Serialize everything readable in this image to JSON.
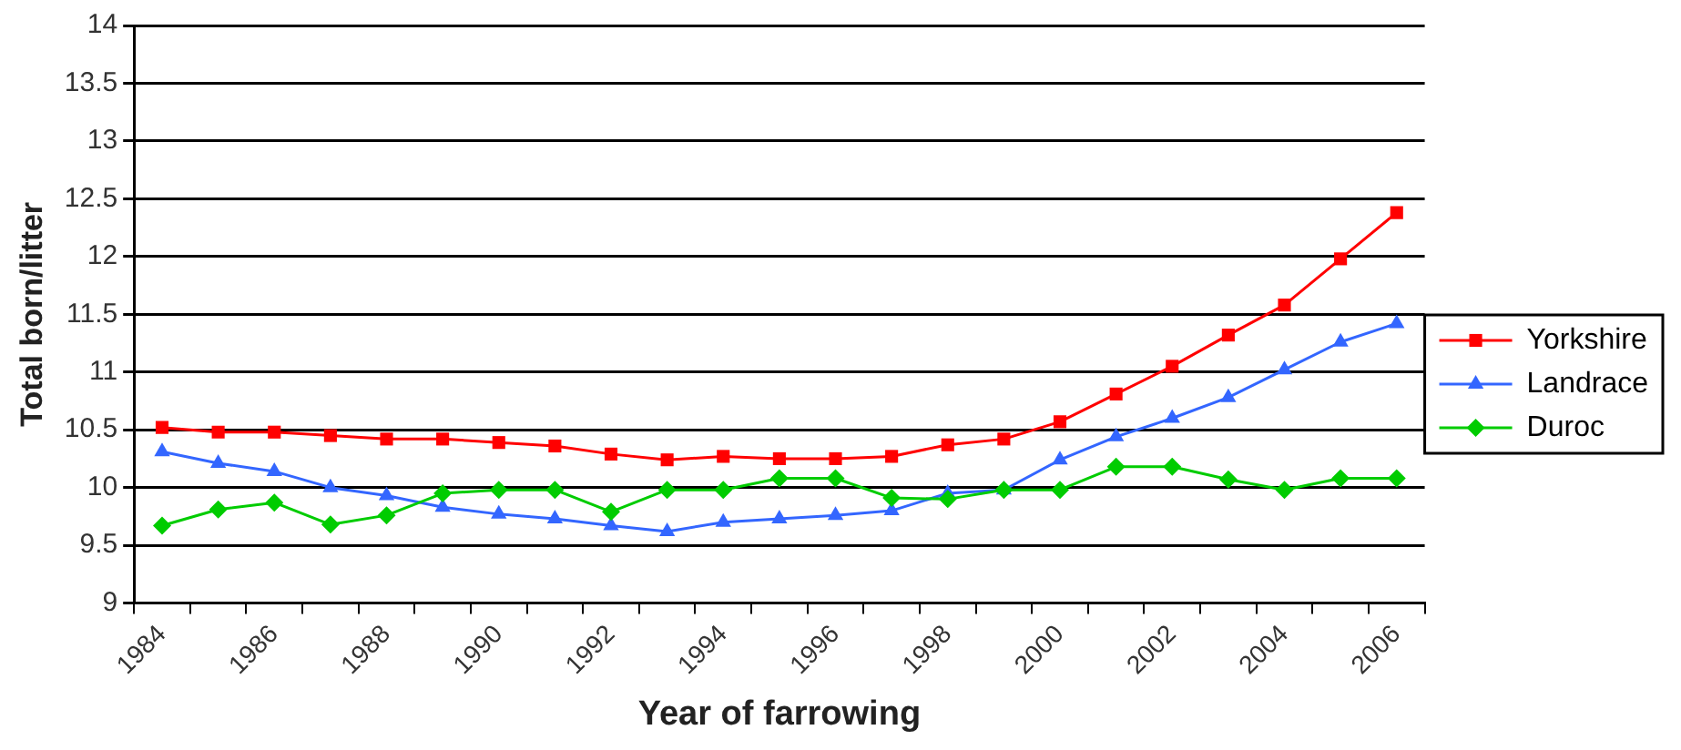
{
  "chart_data": {
    "type": "line",
    "xlabel": "Year of farrowing",
    "ylabel": "Total born/litter",
    "categories": [
      "1984",
      null,
      "1986",
      null,
      "1988",
      null,
      "1990",
      null,
      "1992",
      null,
      "1994",
      null,
      "1996",
      null,
      "1998",
      null,
      "2000",
      null,
      "2002",
      null,
      "2004",
      null,
      "2006"
    ],
    "series": [
      {
        "name": "Yorkshire",
        "color": "#ff0000",
        "marker": "square",
        "values": [
          10.52,
          10.48,
          10.48,
          10.45,
          10.42,
          10.42,
          10.39,
          10.36,
          10.29,
          10.24,
          10.27,
          10.25,
          10.25,
          10.27,
          10.37,
          10.42,
          10.57,
          10.81,
          11.05,
          11.32,
          11.58,
          11.98,
          12.38
        ]
      },
      {
        "name": "Landrace",
        "color": "#3366ff",
        "marker": "triangle",
        "values": [
          10.31,
          10.21,
          10.14,
          10.0,
          9.93,
          9.83,
          9.77,
          9.73,
          9.67,
          9.62,
          9.7,
          9.73,
          9.76,
          9.8,
          9.95,
          9.98,
          10.24,
          10.44,
          10.6,
          10.78,
          11.02,
          11.26,
          11.42
        ]
      },
      {
        "name": "Duroc",
        "color": "#00cc00",
        "marker": "diamond",
        "values": [
          9.67,
          9.81,
          9.87,
          9.68,
          9.76,
          9.95,
          9.98,
          9.98,
          9.79,
          9.98,
          9.98,
          10.08,
          10.08,
          9.91,
          9.9,
          9.98,
          9.98,
          10.18,
          10.18,
          10.07,
          9.98,
          10.08,
          10.08
        ]
      }
    ],
    "ylim": [
      9,
      14
    ],
    "yticks": [
      9,
      9.5,
      10,
      10.5,
      11,
      11.5,
      12,
      12.5,
      13,
      13.5,
      14
    ],
    "grid": "y",
    "legend": "right",
    "line_style": "solid"
  }
}
